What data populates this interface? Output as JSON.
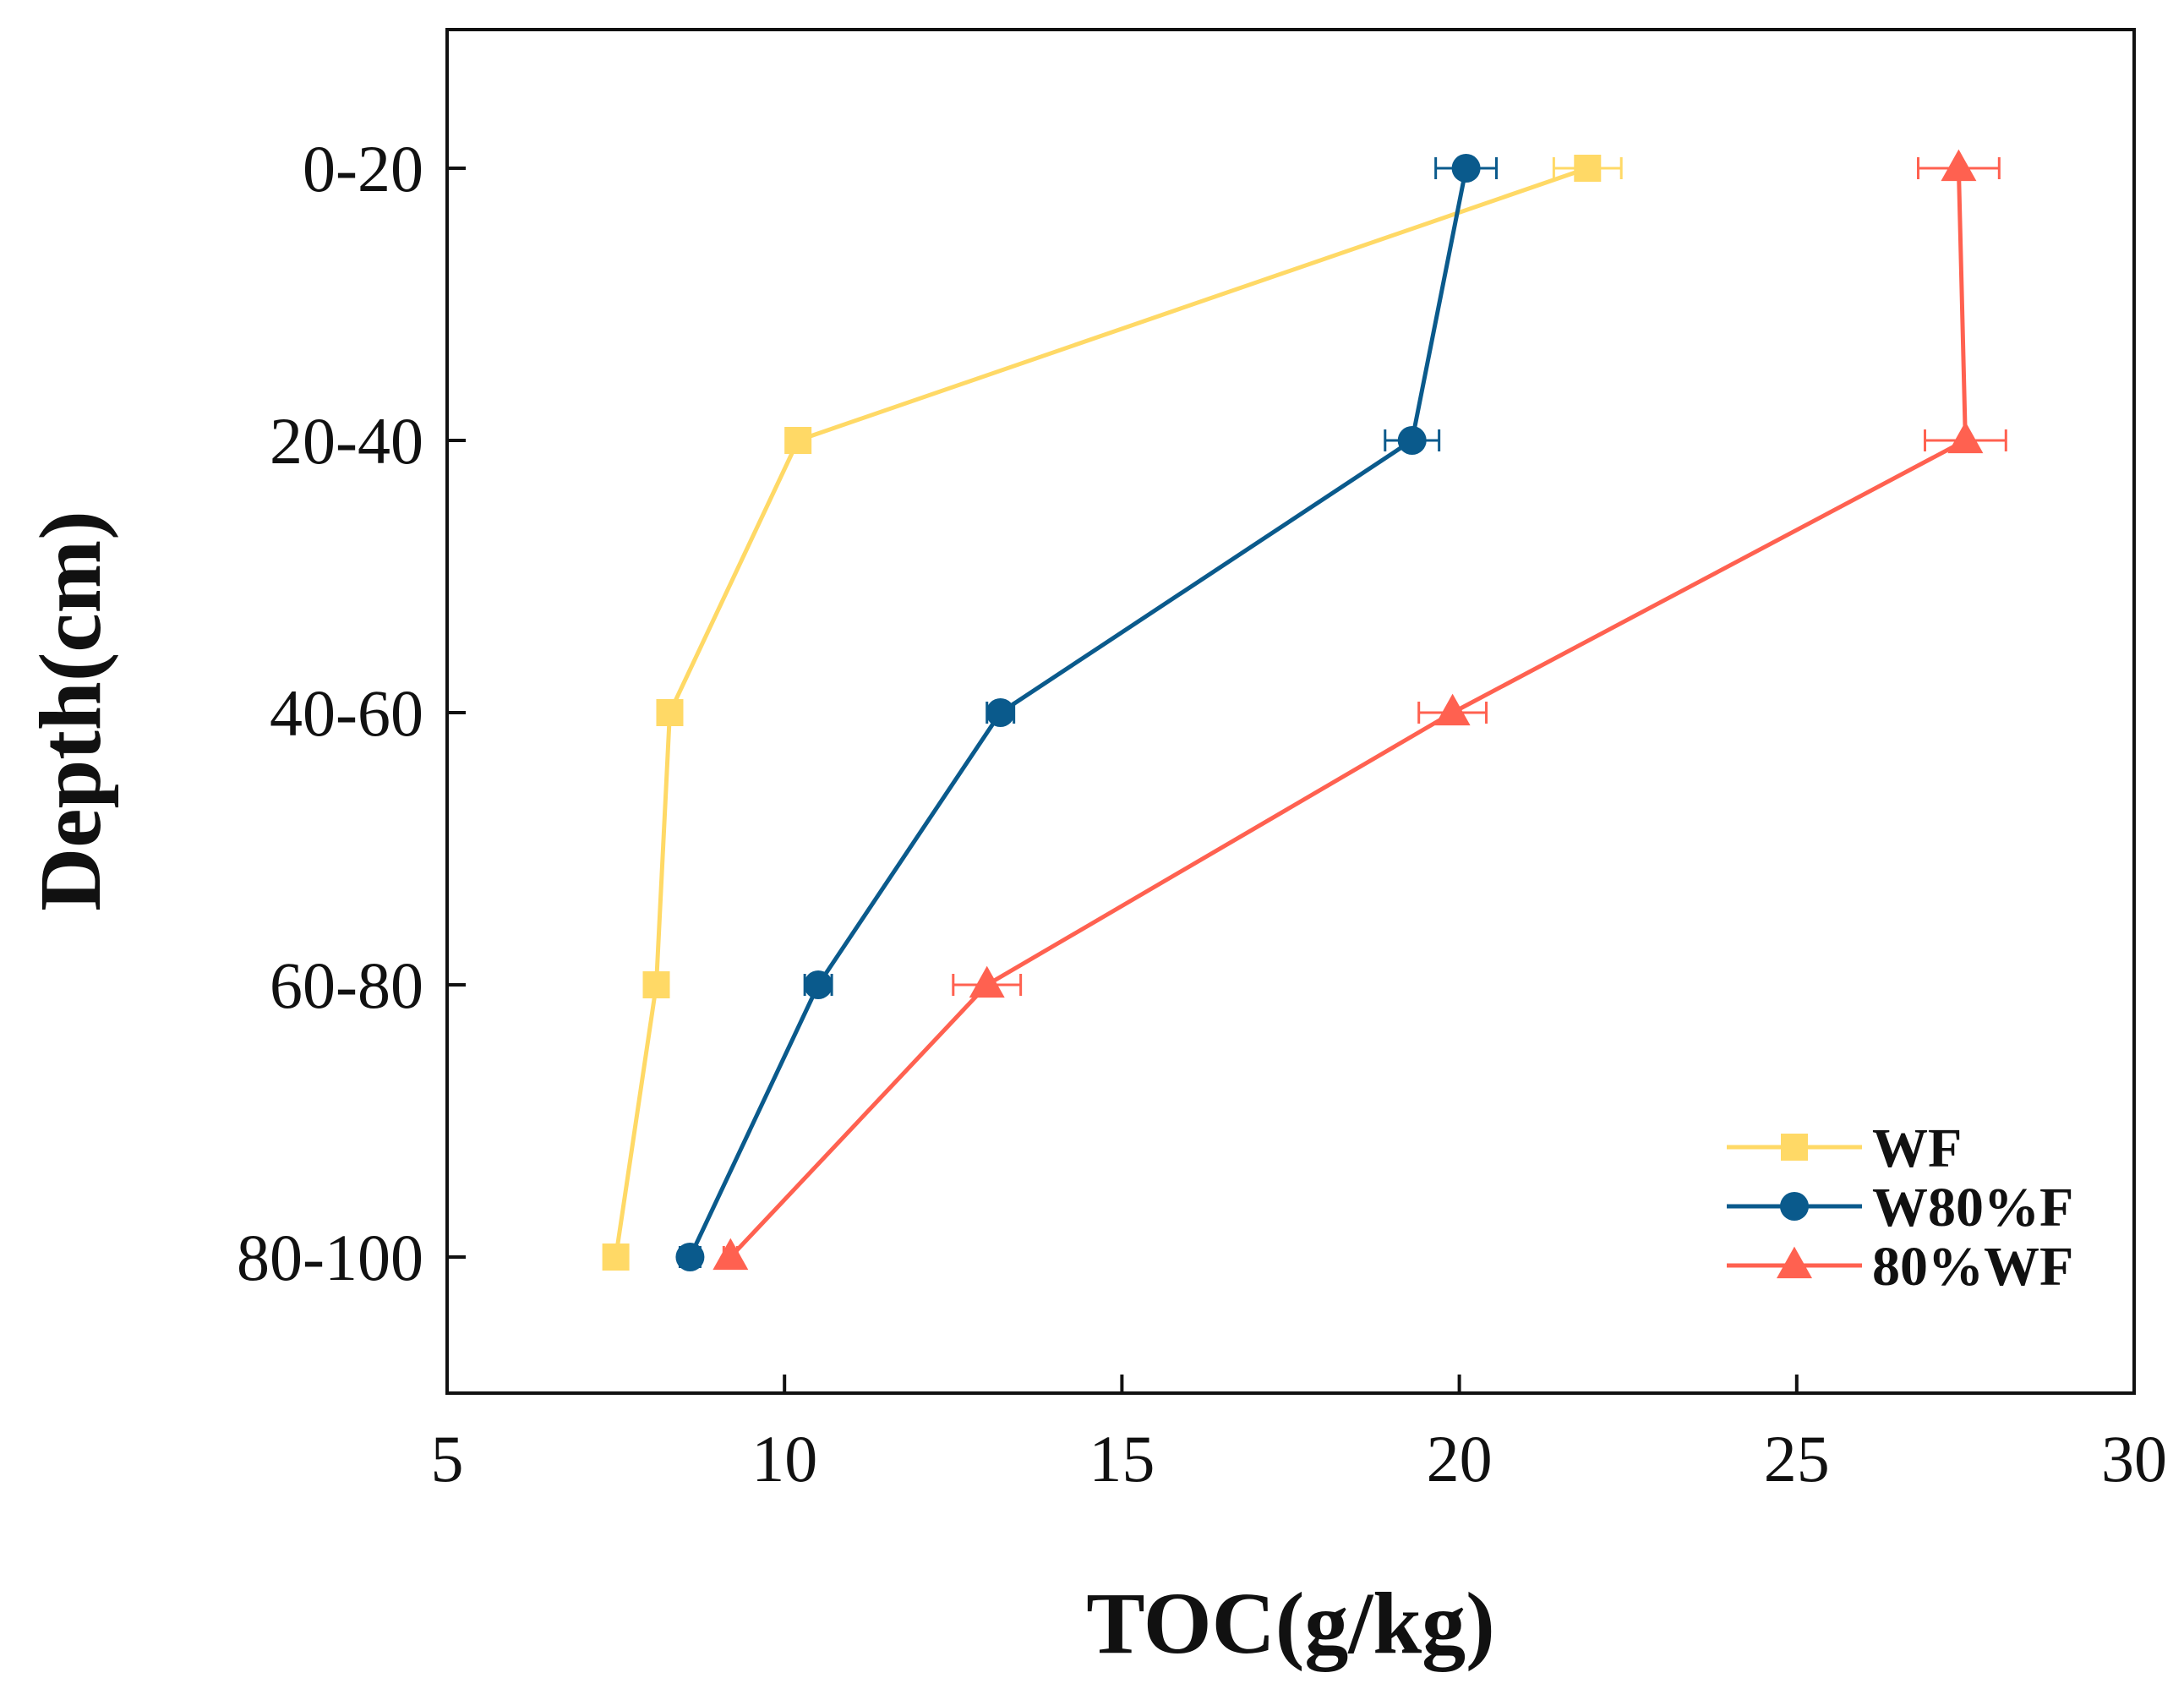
{
  "chart_data": {
    "type": "line",
    "xlabel": "TOC(g/kg)",
    "ylabel": "Depth(cm)",
    "xlim": [
      5,
      30
    ],
    "xticks": [
      5,
      10,
      15,
      20,
      25,
      30
    ],
    "xtick_labels": [
      "5",
      "10",
      "15",
      "20",
      "25",
      "30"
    ],
    "categories": [
      "0-20",
      "20-40",
      "40-60",
      "60-80",
      "80-100"
    ],
    "legend_position": "bottom-right",
    "series": [
      {
        "name": "WF",
        "marker": "square",
        "color": "#FFD966",
        "values": [
          21.9,
          10.2,
          8.3,
          8.1,
          7.5
        ],
        "errors": [
          0.5,
          0.0,
          0.0,
          0.0,
          0.0
        ]
      },
      {
        "name": "W80%F",
        "marker": "circle",
        "color": "#0A5A8C",
        "values": [
          20.1,
          19.3,
          13.2,
          10.5,
          8.6
        ],
        "errors": [
          0.45,
          0.4,
          0.2,
          0.2,
          0.15
        ]
      },
      {
        "name": "80%WF",
        "marker": "triangle",
        "color": "#FF6150",
        "values": [
          27.4,
          27.5,
          19.9,
          13.0,
          9.2
        ],
        "errors": [
          0.6,
          0.6,
          0.5,
          0.5,
          0.1
        ]
      }
    ]
  }
}
